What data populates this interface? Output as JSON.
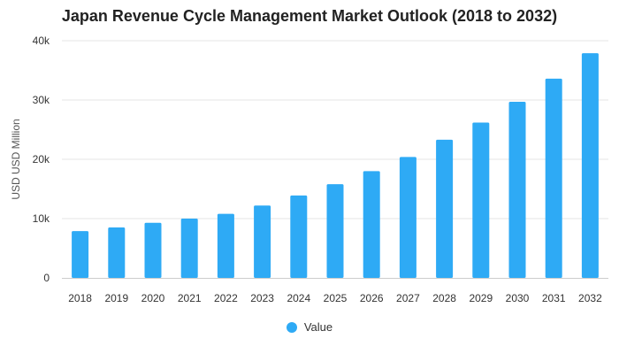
{
  "chart_data": {
    "type": "bar",
    "title": "Japan Revenue Cycle Management Market Outlook (2018 to 2032)",
    "xlabel": "",
    "ylabel": "USD USD Million",
    "categories": [
      "2018",
      "2019",
      "2020",
      "2021",
      "2022",
      "2023",
      "2024",
      "2025",
      "2026",
      "2027",
      "2028",
      "2029",
      "2030",
      "2031",
      "2032"
    ],
    "series": [
      {
        "name": "Value",
        "values": [
          7900,
          8500,
          9300,
          10000,
          10800,
          12200,
          13900,
          15800,
          18000,
          20400,
          23300,
          26200,
          29700,
          33600,
          37900
        ]
      }
    ],
    "ylim": [
      0,
      40000
    ],
    "yticks": [
      0,
      10000,
      20000,
      30000,
      40000
    ],
    "ytick_labels": [
      "0",
      "10k",
      "20k",
      "30k",
      "40k"
    ],
    "grid": true,
    "legend": "bottom-center",
    "bar_color": "#2eaaf5"
  }
}
